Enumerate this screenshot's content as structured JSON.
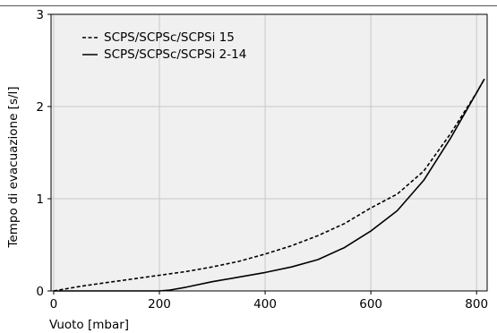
{
  "chart_data": {
    "type": "line",
    "xlabel": "Vuoto [mbar]",
    "ylabel": "Tempo di evacuazione [s/l]",
    "xlim": [
      -5,
      820
    ],
    "ylim": [
      0,
      3
    ],
    "xticks": [
      0,
      200,
      400,
      600,
      800
    ],
    "yticks": [
      0,
      1,
      2,
      3
    ],
    "grid": true,
    "legend": "top-left",
    "background_color": "#f0f0f0",
    "grid_color": "#c8c8c8",
    "series": [
      {
        "name": "SCPS/SCPSc/SCPSi 15",
        "style": "dashed",
        "color": "#000000",
        "x": [
          0,
          50,
          100,
          150,
          200,
          250,
          300,
          350,
          400,
          450,
          500,
          550,
          600,
          650,
          700,
          750,
          800,
          815
        ],
        "y": [
          0,
          0.05,
          0.09,
          0.13,
          0.17,
          0.21,
          0.26,
          0.32,
          0.4,
          0.49,
          0.6,
          0.73,
          0.9,
          1.05,
          1.3,
          1.7,
          2.15,
          2.3
        ]
      },
      {
        "name": "SCPS/SCPSc/SCPSi 2-14",
        "style": "solid",
        "color": "#000000",
        "x": [
          0,
          50,
          100,
          150,
          200,
          220,
          250,
          300,
          350,
          400,
          450,
          500,
          550,
          600,
          650,
          700,
          750,
          800,
          815
        ],
        "y": [
          0,
          0,
          0,
          0,
          0,
          0.01,
          0.04,
          0.1,
          0.15,
          0.2,
          0.26,
          0.34,
          0.47,
          0.65,
          0.87,
          1.2,
          1.65,
          2.15,
          2.3
        ]
      }
    ]
  }
}
